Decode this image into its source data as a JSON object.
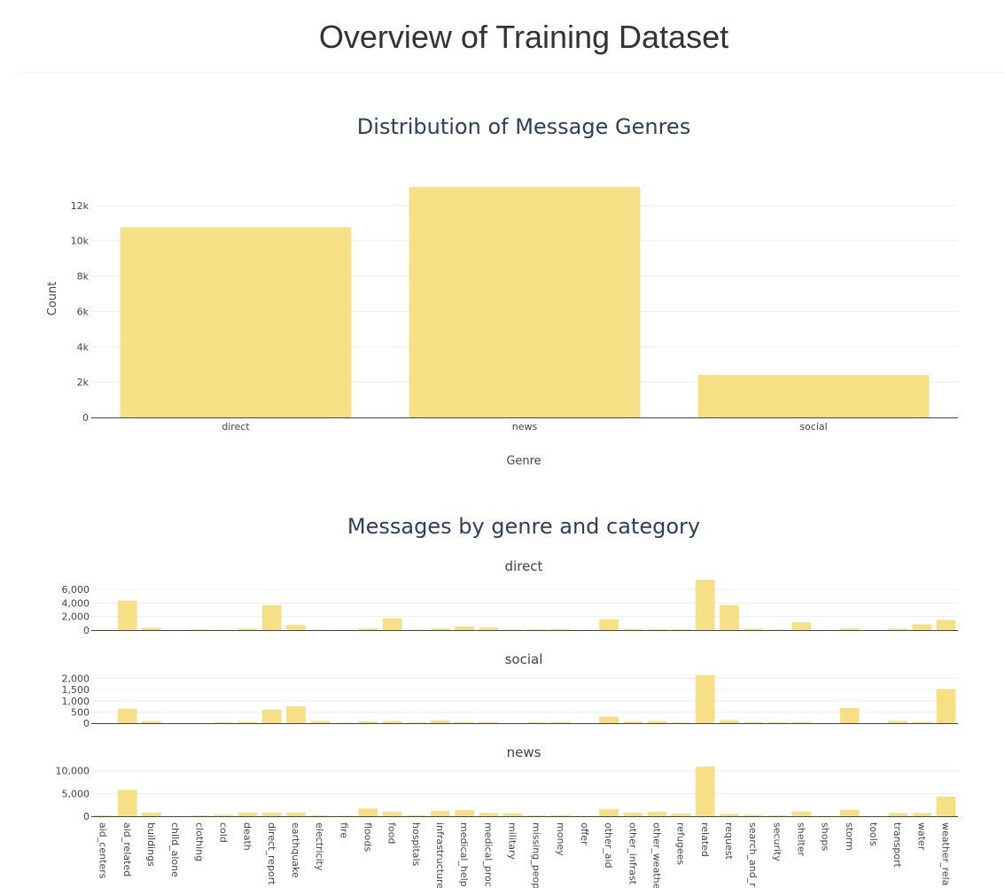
{
  "page": {
    "title": "Overview of Training Dataset"
  },
  "colors": {
    "bar": "#f5dc78",
    "bar_stroke": "#ecd267",
    "text": "#444444",
    "title": "#2a3f5f",
    "grid": "#eeeeee",
    "axis": "#444444"
  },
  "chart_data": [
    {
      "type": "bar",
      "title": "Distribution of Message Genres",
      "xlabel": "Genre",
      "ylabel": "Count",
      "categories": [
        "direct",
        "news",
        "social"
      ],
      "values": [
        10770,
        13050,
        2400
      ],
      "ylim": [
        0,
        13700
      ],
      "yticks": [
        0,
        2000,
        4000,
        6000,
        8000,
        10000,
        12000
      ],
      "ytick_labels": [
        "0",
        "2k",
        "4k",
        "6k",
        "8k",
        "10k",
        "12k"
      ],
      "grid": true
    },
    {
      "type": "bar",
      "title": "Messages by genre and category",
      "categories": [
        "aid_centers",
        "aid_related",
        "buildings",
        "child_alone",
        "clothing",
        "cold",
        "death",
        "direct_report",
        "earthquake",
        "electricity",
        "fire",
        "floods",
        "food",
        "hospitals",
        "infrastructure_related",
        "medical_help",
        "medical_products",
        "military",
        "missing_people",
        "money",
        "offer",
        "other_aid",
        "other_infrastructure",
        "other_weather",
        "refugees",
        "related",
        "request",
        "search_and_rescue",
        "security",
        "shelter",
        "shops",
        "storm",
        "tools",
        "transport",
        "water",
        "weather_related"
      ],
      "category_labels": [
        "aid_centers",
        "aid_related",
        "buildings",
        "child_alone",
        "clothing",
        "cold",
        "death",
        "direct_report",
        "earthquake",
        "electricity",
        "fire",
        "floods",
        "food",
        "hospitals",
        "infrastructure",
        "medical_help",
        "medical_proc",
        "military",
        "missing_peop",
        "money",
        "offer",
        "other_aid",
        "other_infrast",
        "other_weathe",
        "refugees",
        "related",
        "request",
        "search_and_r",
        "security",
        "shelter",
        "shops",
        "storm",
        "tools",
        "transport",
        "water",
        "weather_rela"
      ],
      "grid": true,
      "subplots": [
        {
          "name": "direct",
          "ylim": [
            0,
            7700
          ],
          "yticks": [
            0,
            2000,
            4000,
            6000
          ],
          "ytick_labels": [
            "0",
            "2,000",
            "4,000",
            "6,000"
          ],
          "values": [
            50,
            4350,
            350,
            0,
            130,
            60,
            220,
            3650,
            750,
            60,
            50,
            240,
            1750,
            60,
            230,
            530,
            380,
            60,
            130,
            170,
            40,
            1600,
            170,
            160,
            140,
            7400,
            3700,
            220,
            80,
            1150,
            40,
            250,
            40,
            230,
            850,
            1500
          ]
        },
        {
          "name": "social",
          "ylim": [
            0,
            2300
          ],
          "yticks": [
            0,
            500,
            1000,
            1500,
            2000
          ],
          "ytick_labels": [
            "0",
            "500",
            "1,000",
            "1,500",
            "2,000"
          ],
          "values": [
            10,
            650,
            90,
            0,
            15,
            40,
            60,
            600,
            750,
            100,
            20,
            80,
            90,
            30,
            120,
            50,
            50,
            15,
            40,
            50,
            10,
            290,
            70,
            90,
            30,
            2150,
            130,
            50,
            40,
            50,
            10,
            680,
            10,
            100,
            60,
            1520
          ]
        },
        {
          "name": "news",
          "ylim": [
            0,
            11500
          ],
          "yticks": [
            0,
            5000,
            10000
          ],
          "ytick_labels": [
            "0",
            "5,000",
            "10,000"
          ],
          "values": [
            200,
            5800,
            800,
            0,
            180,
            330,
            800,
            800,
            800,
            180,
            130,
            1700,
            950,
            200,
            1150,
            1350,
            700,
            650,
            200,
            280,
            100,
            1500,
            750,
            950,
            600,
            10900,
            500,
            300,
            200,
            1000,
            100,
            1400,
            100,
            700,
            700,
            4300
          ]
        }
      ]
    }
  ]
}
